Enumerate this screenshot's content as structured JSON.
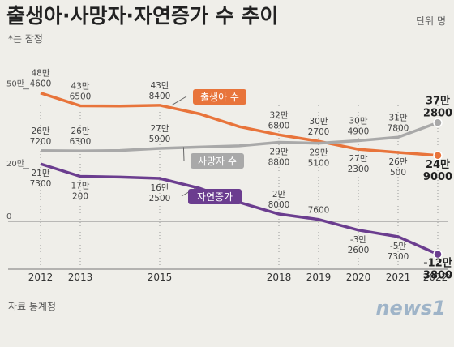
{
  "title": "출생아·사망자·자연증가 수 추이",
  "note": "*는 잠정",
  "unit": "단위 명",
  "source": "자료 통계청",
  "logo": "news1",
  "chart_data": {
    "type": "line",
    "x": [
      2012,
      2013,
      2014,
      2015,
      2016,
      2017,
      2018,
      2019,
      2020,
      2021,
      2022
    ],
    "xlim": [
      2012,
      2022
    ],
    "xticks": [
      2012,
      2013,
      2015,
      2018,
      2019,
      2020,
      2021,
      {
        "value": 2022,
        "label": "2022*"
      }
    ],
    "ylim": [
      -180000,
      600000
    ],
    "yticks": [
      {
        "value": 500000,
        "label": "50만"
      },
      {
        "value": 200000,
        "label": "20만"
      },
      0
    ],
    "series": [
      {
        "name": "출생아 수",
        "color": "#e8743b",
        "values": [
          484600,
          436500,
          435400,
          438400,
          406200,
          357800,
          326800,
          302700,
          272300,
          260500,
          249000
        ],
        "value_labels": [
          "48만\n4600",
          "43만\n6500",
          null,
          "43만\n8400",
          null,
          null,
          "32만\n6800",
          "30만\n2700",
          "27만\n2300",
          "26만\n500",
          "24만\n9000"
        ]
      },
      {
        "name": "사망자 수",
        "color": "#a9a9a9",
        "values": [
          267200,
          266300,
          267700,
          275900,
          280800,
          285500,
          298800,
          295100,
          304900,
          317800,
          372800
        ],
        "value_labels": [
          "26만\n7200",
          "26만\n6300",
          null,
          "27만\n5900",
          null,
          null,
          "29만\n8800",
          "29만\n5100",
          "30만\n4900",
          "31만\n7800",
          "37만\n2800"
        ]
      },
      {
        "name": "자연증가",
        "color": "#6b3d8f",
        "values": [
          217300,
          170200,
          167700,
          162500,
          125400,
          72300,
          28000,
          7600,
          -32600,
          -57300,
          -123800
        ],
        "value_labels": [
          "21만\n7300",
          "17만\n200",
          null,
          "16만\n2500",
          null,
          null,
          "2만\n8000",
          "7600",
          "-3만\n2600",
          "-5만\n7300",
          "-12만\n3800"
        ]
      }
    ]
  }
}
